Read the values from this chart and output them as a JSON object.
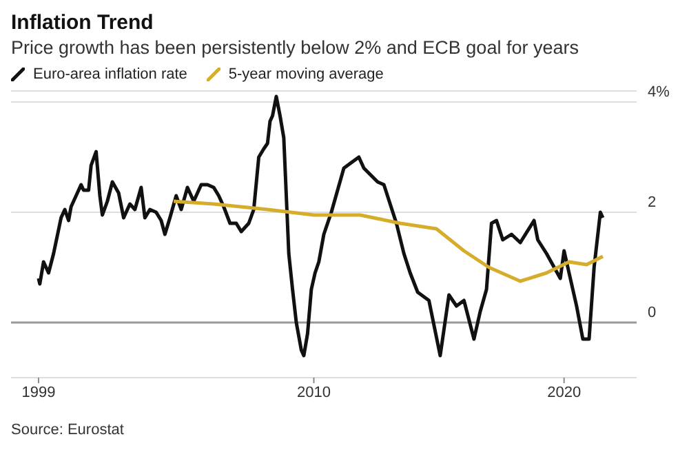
{
  "chart_data": {
    "type": "line",
    "title": "Inflation Trend",
    "subtitle": "Price growth has been persistently below 2% and ECB goal for years",
    "annotations": [
      "Source: Eurostat"
    ],
    "series": [
      {
        "name": "Euro-area inflation rate",
        "color": "#111111",
        "x": [
          1999.0,
          1999.05,
          1999.2,
          1999.4,
          1999.6,
          1999.9,
          2000.05,
          2000.2,
          2000.3,
          2000.55,
          2000.7,
          2000.8,
          2001.0,
          2001.1,
          2001.3,
          2001.45,
          2001.55,
          2001.75,
          2001.95,
          2002.2,
          2002.4,
          2002.65,
          2002.85,
          2003.1,
          2003.25,
          2003.45,
          2003.7,
          2003.9,
          2004.05,
          2004.25,
          2004.5,
          2004.7,
          2004.95,
          2005.2,
          2005.5,
          2005.75,
          2006.0,
          2006.2,
          2006.4,
          2006.65,
          2006.9,
          2007.1,
          2007.4,
          2007.6,
          2007.8,
          2008.0,
          2008.15,
          2008.25,
          2008.35,
          2008.5,
          2008.65,
          2008.8,
          2008.9,
          2009.0,
          2009.15,
          2009.3,
          2009.5,
          2009.6,
          2009.75,
          2009.9,
          2010.05,
          2010.2,
          2010.4,
          2010.7,
          2011.2,
          2011.8,
          2012.0,
          2012.55,
          2012.8,
          2013.3,
          2013.6,
          2013.85,
          2014.15,
          2014.6,
          2015.05,
          2015.4,
          2015.7,
          2016.0,
          2016.4,
          2016.65,
          2016.9,
          2017.1,
          2017.3,
          2017.55,
          2017.9,
          2018.25,
          2018.8,
          2018.95,
          2019.3,
          2019.85,
          2020.0,
          2020.5,
          2020.75,
          2021.0,
          2021.2,
          2021.45,
          2021.55
        ],
        "values": [
          0.8,
          0.7,
          1.1,
          0.9,
          1.25,
          1.9,
          2.05,
          1.85,
          2.1,
          2.35,
          2.5,
          2.4,
          2.4,
          2.85,
          3.1,
          2.3,
          1.95,
          2.2,
          2.55,
          2.35,
          1.9,
          2.15,
          2.05,
          2.45,
          1.9,
          2.05,
          2.0,
          1.85,
          1.6,
          1.9,
          2.3,
          2.05,
          2.45,
          2.2,
          2.5,
          2.5,
          2.45,
          2.3,
          2.1,
          1.8,
          1.8,
          1.65,
          1.8,
          2.05,
          3.0,
          3.15,
          3.25,
          3.65,
          3.75,
          4.1,
          3.75,
          3.35,
          2.3,
          1.25,
          0.6,
          0.0,
          -0.5,
          -0.6,
          -0.2,
          0.6,
          0.9,
          1.1,
          1.6,
          2.0,
          2.8,
          3.0,
          2.8,
          2.55,
          2.5,
          1.8,
          1.25,
          0.9,
          0.55,
          0.4,
          -0.6,
          0.5,
          0.3,
          0.4,
          -0.3,
          0.2,
          0.6,
          1.8,
          1.85,
          1.5,
          1.6,
          1.45,
          1.85,
          1.5,
          1.25,
          0.8,
          1.3,
          0.3,
          -0.3,
          -0.3,
          1.0,
          2.0,
          1.9
        ]
      },
      {
        "name": "5-year moving average",
        "color": "#d6ad2b",
        "x": [
          2004.4,
          2006.0,
          2008.15,
          2010.0,
          2011.85,
          2013.45,
          2014.9,
          2016.0,
          2017.0,
          2018.25,
          2019.3,
          2020.2,
          2020.9,
          2021.55
        ],
        "values": [
          2.2,
          2.15,
          2.05,
          1.95,
          1.95,
          1.8,
          1.7,
          1.3,
          1.0,
          0.75,
          0.9,
          1.1,
          1.05,
          1.2
        ]
      }
    ],
    "xlim": [
      1997.9,
      2022.9
    ],
    "xticks": [
      1999,
      2010,
      2020
    ],
    "ylim": [
      -1,
      4.2
    ],
    "yticks": [
      {
        "value": 4,
        "label": "4%"
      },
      2,
      0
    ],
    "ref_lines": [
      {
        "axis": "y",
        "value": 0,
        "color": "#999999"
      }
    ],
    "grid": "y",
    "legend": "top left",
    "line_style": "solid",
    "marker": "none"
  }
}
